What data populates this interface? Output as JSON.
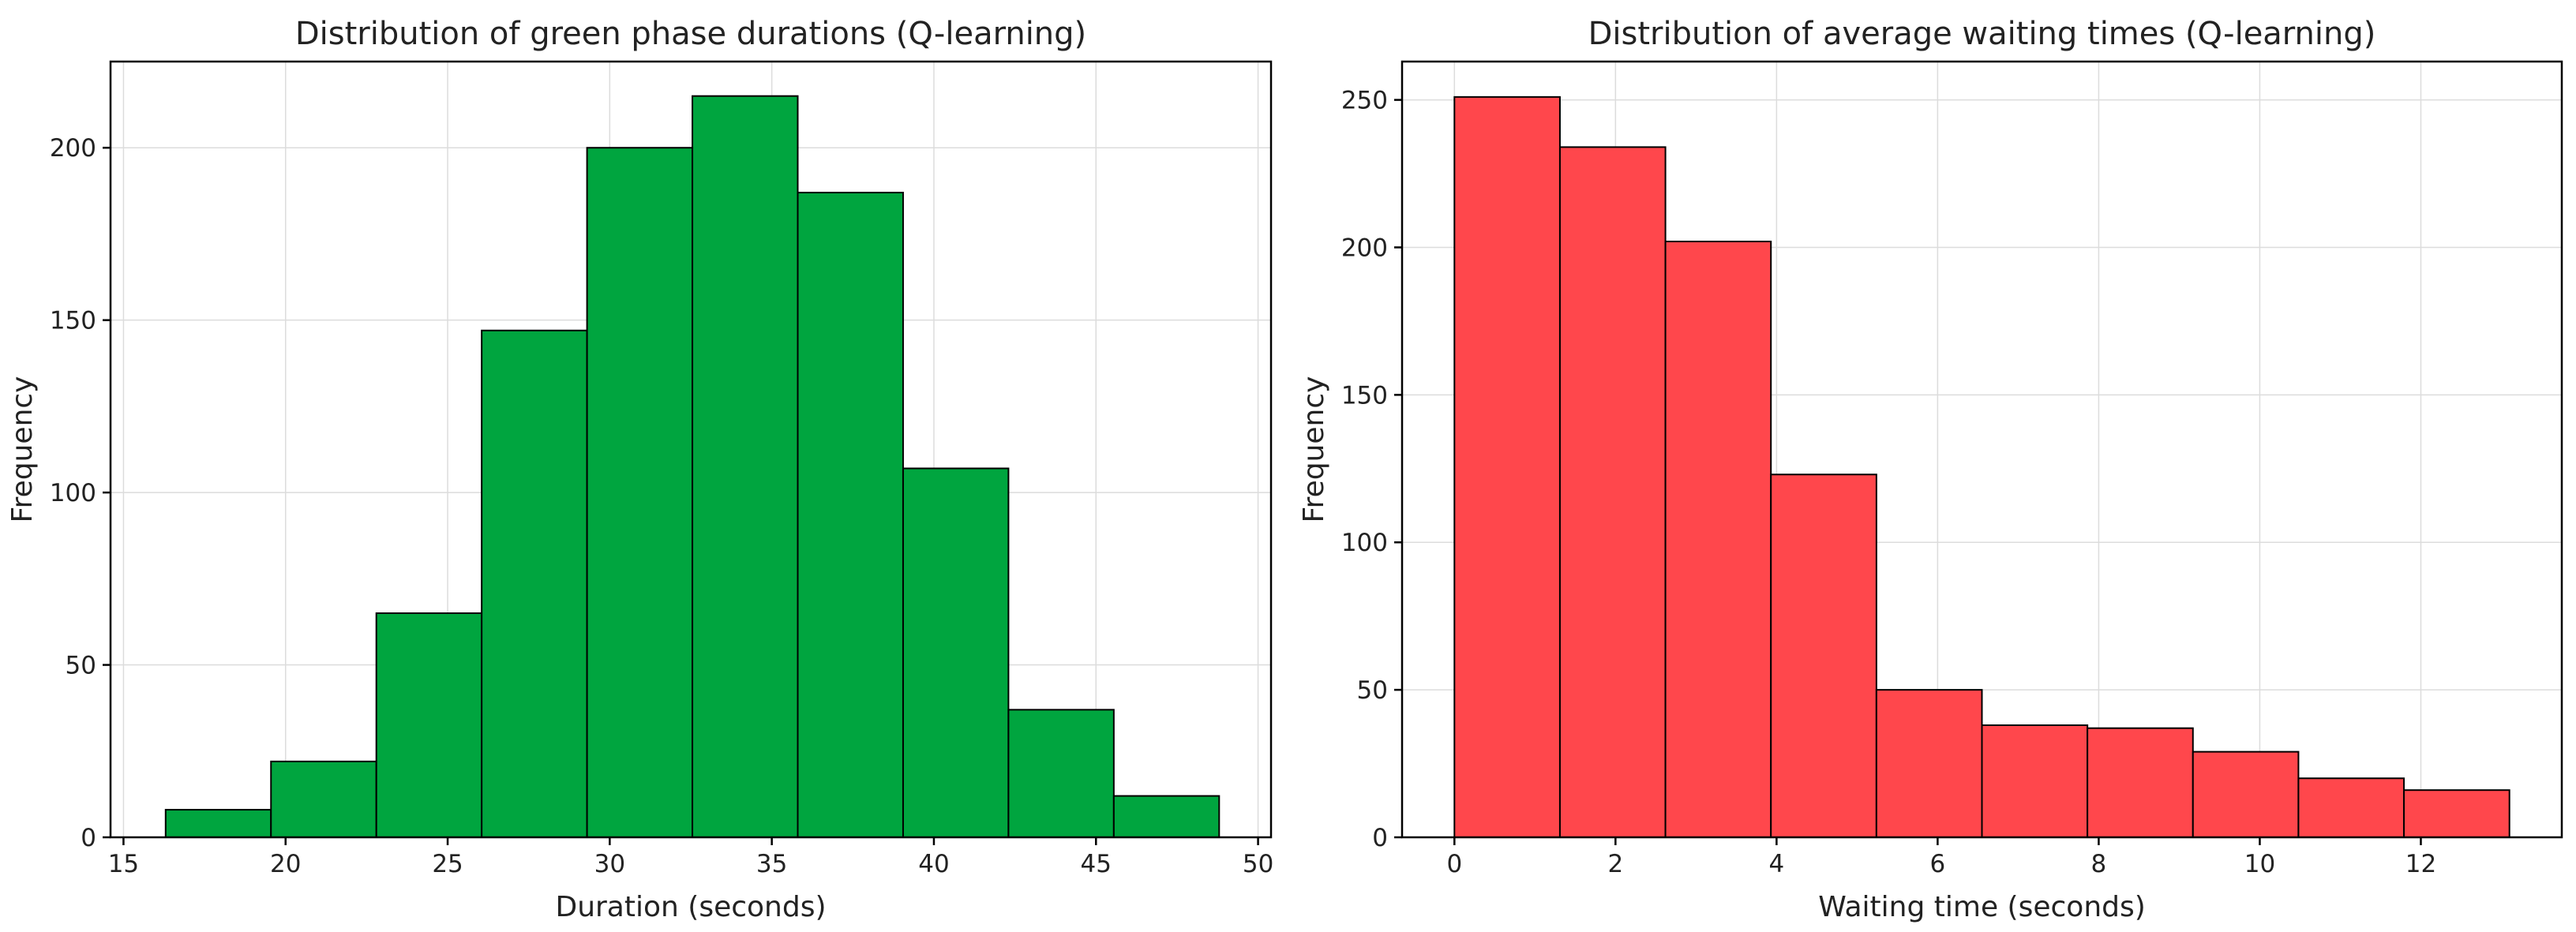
{
  "chart_data": [
    {
      "type": "bar",
      "title": "Distribution of green phase durations (Q-learning)",
      "xlabel": "Duration (seconds)",
      "ylabel": "Frequency",
      "bin_edges": [
        16.3,
        19.55,
        22.8,
        26.05,
        29.3,
        32.55,
        35.8,
        39.05,
        42.3,
        45.55,
        48.8
      ],
      "values": [
        8,
        22,
        65,
        147,
        200,
        215,
        187,
        107,
        37,
        12
      ],
      "xlim": [
        14.6,
        50.4
      ],
      "ylim": [
        0,
        225
      ],
      "xticks": [
        15,
        20,
        25,
        30,
        35,
        40,
        45,
        50
      ],
      "yticks": [
        0,
        50,
        100,
        150,
        200
      ],
      "color": "#00a53f",
      "edge_color": "#000000",
      "grid": true
    },
    {
      "type": "bar",
      "title": "Distribution of average waiting times (Q-learning)",
      "xlabel": "Waiting time (seconds)",
      "ylabel": "Frequency",
      "bin_edges": [
        0,
        1.31,
        2.62,
        3.93,
        5.24,
        6.55,
        7.86,
        9.17,
        10.48,
        11.79,
        13.1
      ],
      "values": [
        251,
        234,
        202,
        123,
        50,
        38,
        37,
        29,
        20,
        16
      ],
      "xlim": [
        -0.65,
        13.75
      ],
      "ylim": [
        0,
        263
      ],
      "xticks": [
        0,
        2,
        4,
        6,
        8,
        10,
        12
      ],
      "yticks": [
        0,
        50,
        100,
        150,
        200,
        250
      ],
      "color": "#ff474c",
      "edge_color": "#000000",
      "grid": true
    }
  ]
}
